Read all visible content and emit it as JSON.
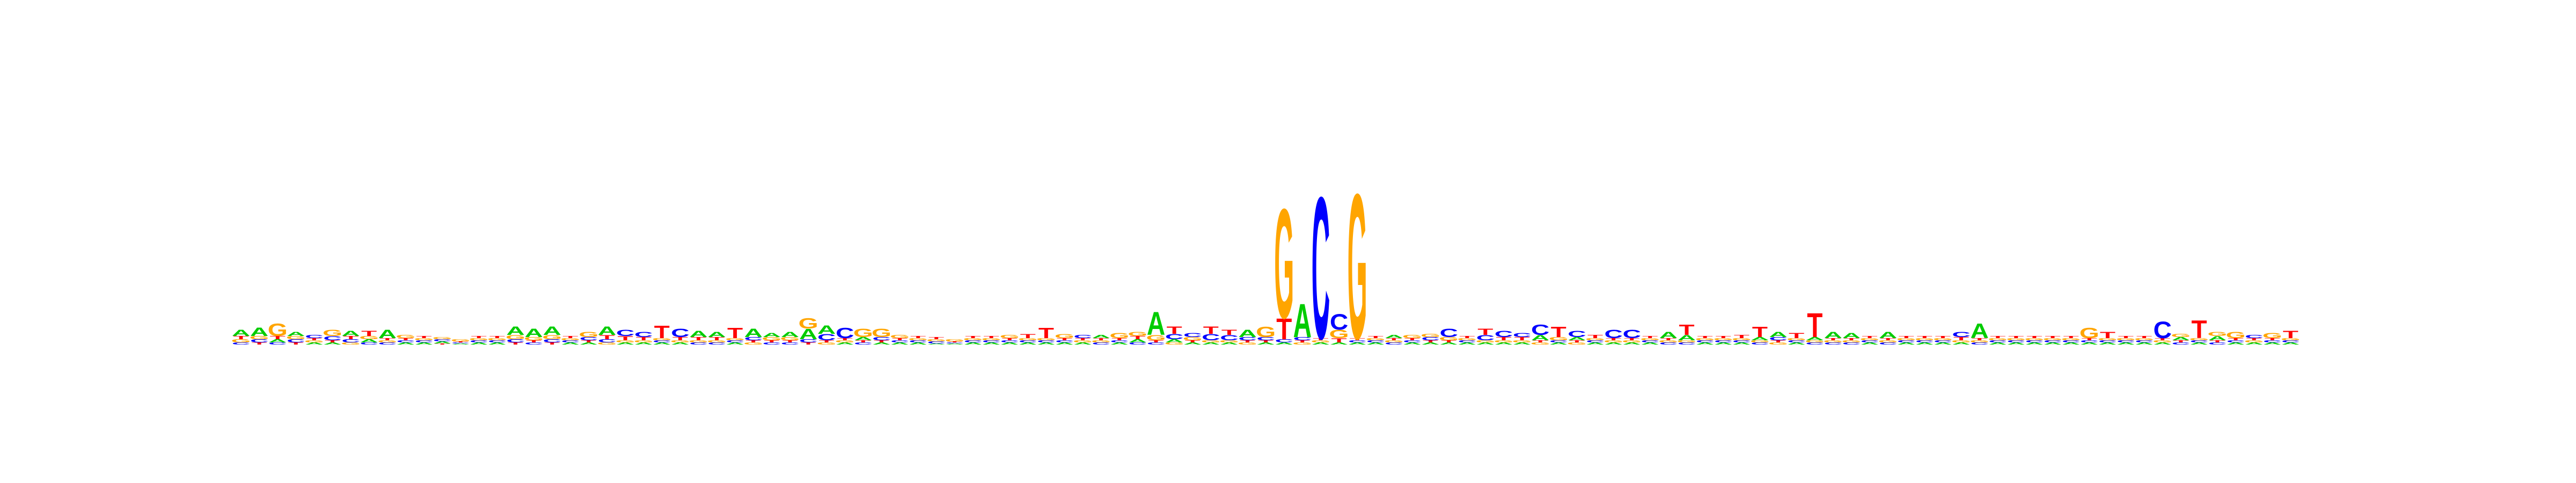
{
  "chart_data": {
    "type": "sequence-logo",
    "alphabet": [
      "A",
      "C",
      "G",
      "T"
    ],
    "colors": {
      "A": "#00cc00",
      "C": "#0000ff",
      "G": "#ffa500",
      "T": "#ff0000"
    },
    "ylim": [
      0,
      2
    ],
    "columns": [
      {
        "A": 0.06,
        "C": 0.02,
        "G": 0.03,
        "T": 0.03
      },
      {
        "A": 0.08,
        "C": 0.03,
        "G": 0.03,
        "T": 0.02
      },
      {
        "A": 0.03,
        "C": 0.02,
        "G": 0.12,
        "T": 0.03
      },
      {
        "A": 0.04,
        "C": 0.03,
        "G": 0.03,
        "T": 0.02
      },
      {
        "A": 0.02,
        "C": 0.03,
        "G": 0.02,
        "T": 0.02
      },
      {
        "A": 0.02,
        "C": 0.04,
        "G": 0.06,
        "T": 0.02
      },
      {
        "A": 0.05,
        "C": 0.03,
        "G": 0.02,
        "T": 0.03
      },
      {
        "A": 0.03,
        "C": 0.02,
        "G": 0.03,
        "T": 0.05
      },
      {
        "A": 0.08,
        "C": 0.02,
        "G": 0.02,
        "T": 0.02
      },
      {
        "A": 0.02,
        "C": 0.02,
        "G": 0.03,
        "T": 0.02
      },
      {
        "A": 0.02,
        "C": 0.02,
        "G": 0.02,
        "T": 0.02
      },
      {
        "A": 0.02,
        "C": 0.02,
        "G": 0.02,
        "T": 0.01
      },
      {
        "A": 0.01,
        "C": 0.01,
        "G": 0.02,
        "T": 0.01
      },
      {
        "A": 0.02,
        "C": 0.02,
        "G": 0.02,
        "T": 0.02
      },
      {
        "A": 0.02,
        "C": 0.02,
        "G": 0.02,
        "T": 0.02
      },
      {
        "A": 0.08,
        "C": 0.03,
        "G": 0.04,
        "T": 0.02
      },
      {
        "A": 0.08,
        "C": 0.02,
        "G": 0.03,
        "T": 0.02
      },
      {
        "A": 0.08,
        "C": 0.03,
        "G": 0.04,
        "T": 0.02
      },
      {
        "A": 0.02,
        "C": 0.02,
        "G": 0.02,
        "T": 0.02
      },
      {
        "A": 0.02,
        "C": 0.03,
        "G": 0.05,
        "T": 0.02
      },
      {
        "A": 0.08,
        "C": 0.03,
        "G": 0.02,
        "T": 0.04
      },
      {
        "A": 0.02,
        "C": 0.06,
        "G": 0.02,
        "T": 0.04
      },
      {
        "A": 0.02,
        "C": 0.05,
        "G": 0.02,
        "T": 0.03
      },
      {
        "A": 0.02,
        "C": 0.02,
        "G": 0.02,
        "T": 0.12
      },
      {
        "A": 0.02,
        "C": 0.08,
        "G": 0.02,
        "T": 0.03
      },
      {
        "A": 0.06,
        "C": 0.02,
        "G": 0.02,
        "T": 0.03
      },
      {
        "A": 0.05,
        "C": 0.02,
        "G": 0.02,
        "T": 0.03
      },
      {
        "A": 0.02,
        "C": 0.02,
        "G": 0.02,
        "T": 0.1
      },
      {
        "A": 0.08,
        "C": 0.03,
        "G": 0.02,
        "T": 0.02
      },
      {
        "A": 0.04,
        "C": 0.02,
        "G": 0.03,
        "T": 0.02
      },
      {
        "A": 0.05,
        "C": 0.02,
        "G": 0.03,
        "T": 0.02
      },
      {
        "A": 0.1,
        "C": 0.03,
        "G": 0.1,
        "T": 0.02
      },
      {
        "A": 0.08,
        "C": 0.06,
        "G": 0.02,
        "T": 0.02
      },
      {
        "A": 0.02,
        "C": 0.1,
        "G": 0.02,
        "T": 0.02
      },
      {
        "A": 0.03,
        "C": 0.02,
        "G": 0.08,
        "T": 0.02
      },
      {
        "A": 0.02,
        "C": 0.03,
        "G": 0.08,
        "T": 0.02
      },
      {
        "A": 0.02,
        "C": 0.02,
        "G": 0.03,
        "T": 0.02
      },
      {
        "A": 0.02,
        "C": 0.02,
        "G": 0.02,
        "T": 0.02
      },
      {
        "A": 0.01,
        "C": 0.02,
        "G": 0.02,
        "T": 0.02
      },
      {
        "A": 0.01,
        "C": 0.01,
        "G": 0.02,
        "T": 0.01
      },
      {
        "A": 0.02,
        "C": 0.02,
        "G": 0.02,
        "T": 0.02
      },
      {
        "A": 0.02,
        "C": 0.02,
        "G": 0.02,
        "T": 0.02
      },
      {
        "A": 0.02,
        "C": 0.02,
        "G": 0.03,
        "T": 0.02
      },
      {
        "A": 0.02,
        "C": 0.02,
        "G": 0.02,
        "T": 0.04
      },
      {
        "A": 0.02,
        "C": 0.02,
        "G": 0.02,
        "T": 0.1
      },
      {
        "A": 0.02,
        "C": 0.02,
        "G": 0.04,
        "T": 0.02
      },
      {
        "A": 0.02,
        "C": 0.03,
        "G": 0.02,
        "T": 0.02
      },
      {
        "A": 0.03,
        "C": 0.02,
        "G": 0.02,
        "T": 0.02
      },
      {
        "A": 0.02,
        "C": 0.02,
        "G": 0.05,
        "T": 0.02
      },
      {
        "A": 0.03,
        "C": 0.02,
        "G": 0.04,
        "T": 0.03
      },
      {
        "A": 0.22,
        "C": 0.02,
        "G": 0.05,
        "T": 0.02
      },
      {
        "A": 0.03,
        "C": 0.05,
        "G": 0.02,
        "T": 0.07
      },
      {
        "A": 0.02,
        "C": 0.04,
        "G": 0.03,
        "T": 0.02
      },
      {
        "A": 0.02,
        "C": 0.06,
        "G": 0.02,
        "T": 0.07
      },
      {
        "A": 0.02,
        "C": 0.05,
        "G": 0.02,
        "T": 0.05
      },
      {
        "A": 0.07,
        "C": 0.03,
        "G": 0.02,
        "T": 0.02
      },
      {
        "A": 0.02,
        "C": 0.03,
        "G": 0.1,
        "T": 0.02
      },
      {
        "A": 0.02,
        "C": 0.03,
        "G": 1.05,
        "T": 0.2
      },
      {
        "A": 0.32,
        "C": 0.03,
        "G": 0.02,
        "T": 0.02
      },
      {
        "A": 0.02,
        "C": 1.36,
        "G": 0.02,
        "T": 0.02
      },
      {
        "A": 0.02,
        "C": 0.15,
        "G": 0.08,
        "T": 0.04
      },
      {
        "A": 0.02,
        "C": 0.02,
        "G": 1.39,
        "T": 0.02
      },
      {
        "A": 0.02,
        "C": 0.02,
        "G": 0.02,
        "T": 0.02
      },
      {
        "A": 0.03,
        "C": 0.02,
        "G": 0.02,
        "T": 0.02
      },
      {
        "A": 0.02,
        "C": 0.02,
        "G": 0.03,
        "T": 0.02
      },
      {
        "A": 0.02,
        "C": 0.03,
        "G": 0.03,
        "T": 0.02
      },
      {
        "A": 0.02,
        "C": 0.08,
        "G": 0.03,
        "T": 0.02
      },
      {
        "A": 0.02,
        "C": 0.02,
        "G": 0.02,
        "T": 0.02
      },
      {
        "A": 0.02,
        "C": 0.05,
        "G": 0.02,
        "T": 0.06
      },
      {
        "A": 0.02,
        "C": 0.06,
        "G": 0.02,
        "T": 0.03
      },
      {
        "A": 0.02,
        "C": 0.04,
        "G": 0.02,
        "T": 0.03
      },
      {
        "A": 0.05,
        "C": 0.1,
        "G": 0.02,
        "T": 0.02
      },
      {
        "A": 0.02,
        "C": 0.02,
        "G": 0.03,
        "T": 0.1
      },
      {
        "A": 0.03,
        "C": 0.06,
        "G": 0.02,
        "T": 0.02
      },
      {
        "A": 0.02,
        "C": 0.02,
        "G": 0.02,
        "T": 0.03
      },
      {
        "A": 0.02,
        "C": 0.08,
        "G": 0.02,
        "T": 0.02
      },
      {
        "A": 0.02,
        "C": 0.08,
        "G": 0.02,
        "T": 0.02
      },
      {
        "A": 0.02,
        "C": 0.02,
        "G": 0.02,
        "T": 0.02
      },
      {
        "A": 0.06,
        "C": 0.02,
        "G": 0.02,
        "T": 0.02
      },
      {
        "A": 0.05,
        "C": 0.02,
        "G": 0.02,
        "T": 0.1
      },
      {
        "A": 0.02,
        "C": 0.02,
        "G": 0.02,
        "T": 0.02
      },
      {
        "A": 0.02,
        "C": 0.02,
        "G": 0.02,
        "T": 0.02
      },
      {
        "A": 0.02,
        "C": 0.02,
        "G": 0.02,
        "T": 0.03
      },
      {
        "A": 0.03,
        "C": 0.02,
        "G": 0.02,
        "T": 0.1
      },
      {
        "A": 0.05,
        "C": 0.03,
        "G": 0.02,
        "T": 0.02
      },
      {
        "A": 0.02,
        "C": 0.02,
        "G": 0.02,
        "T": 0.05
      },
      {
        "A": 0.03,
        "C": 0.02,
        "G": 0.02,
        "T": 0.23
      },
      {
        "A": 0.06,
        "C": 0.02,
        "G": 0.02,
        "T": 0.02
      },
      {
        "A": 0.05,
        "C": 0.02,
        "G": 0.02,
        "T": 0.02
      },
      {
        "A": 0.02,
        "C": 0.02,
        "G": 0.02,
        "T": 0.02
      },
      {
        "A": 0.06,
        "C": 0.02,
        "G": 0.02,
        "T": 0.02
      },
      {
        "A": 0.02,
        "C": 0.02,
        "G": 0.02,
        "T": 0.02
      },
      {
        "A": 0.02,
        "C": 0.02,
        "G": 0.02,
        "T": 0.02
      },
      {
        "A": 0.02,
        "C": 0.02,
        "G": 0.02,
        "T": 0.02
      },
      {
        "A": 0.02,
        "C": 0.05,
        "G": 0.02,
        "T": 0.03
      },
      {
        "A": 0.14,
        "C": 0.02,
        "G": 0.02,
        "T": 0.02
      },
      {
        "A": 0.02,
        "C": 0.02,
        "G": 0.02,
        "T": 0.02
      },
      {
        "A": 0.02,
        "C": 0.02,
        "G": 0.02,
        "T": 0.02
      },
      {
        "A": 0.02,
        "C": 0.02,
        "G": 0.02,
        "T": 0.02
      },
      {
        "A": 0.02,
        "C": 0.02,
        "G": 0.02,
        "T": 0.02
      },
      {
        "A": 0.02,
        "C": 0.02,
        "G": 0.02,
        "T": 0.02
      },
      {
        "A": 0.02,
        "C": 0.02,
        "G": 0.1,
        "T": 0.02
      },
      {
        "A": 0.02,
        "C": 0.02,
        "G": 0.02,
        "T": 0.06
      },
      {
        "A": 0.02,
        "C": 0.02,
        "G": 0.02,
        "T": 0.02
      },
      {
        "A": 0.02,
        "C": 0.02,
        "G": 0.02,
        "T": 0.02
      },
      {
        "A": 0.02,
        "C": 0.16,
        "G": 0.02,
        "T": 0.02
      },
      {
        "A": 0.03,
        "C": 0.02,
        "G": 0.03,
        "T": 0.02
      },
      {
        "A": 0.02,
        "C": 0.02,
        "G": 0.02,
        "T": 0.17
      },
      {
        "A": 0.04,
        "C": 0.02,
        "G": 0.04,
        "T": 0.02
      },
      {
        "A": 0.02,
        "C": 0.02,
        "G": 0.06,
        "T": 0.02
      },
      {
        "A": 0.02,
        "C": 0.03,
        "G": 0.02,
        "T": 0.02
      },
      {
        "A": 0.02,
        "C": 0.02,
        "G": 0.05,
        "T": 0.02
      },
      {
        "A": 0.02,
        "C": 0.02,
        "G": 0.02,
        "T": 0.07
      }
    ]
  }
}
